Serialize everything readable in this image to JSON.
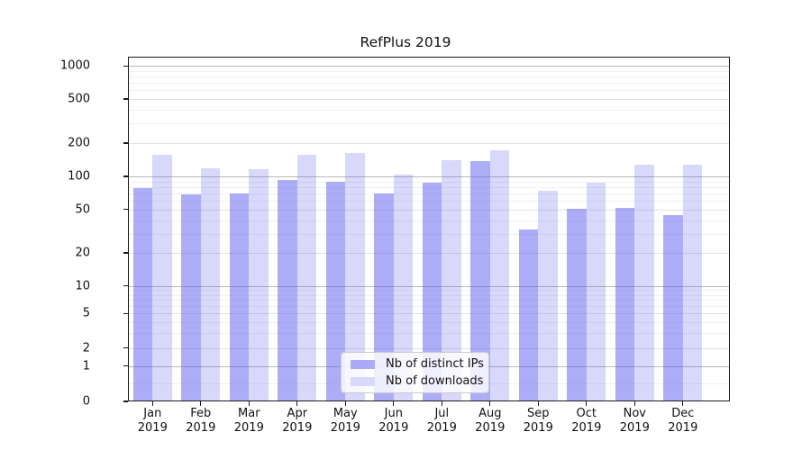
{
  "chart_data": {
    "type": "bar",
    "title": "RefPlus 2019",
    "categories": [
      "Jan 2019",
      "Feb 2019",
      "Mar 2019",
      "Apr 2019",
      "May 2019",
      "Jun 2019",
      "Jul 2019",
      "Aug 2019",
      "Sep 2019",
      "Oct 2019",
      "Nov 2019",
      "Dec 2019"
    ],
    "series": [
      {
        "key": "distinct-ips",
        "name": "Nb of distinct IPs",
        "css_color": "rgba(92,92,240,0.5)",
        "swatch_color": "#aaaaf8",
        "values": [
          79,
          68,
          70,
          92,
          90,
          70,
          87,
          137,
          33,
          51,
          52,
          44
        ]
      },
      {
        "key": "downloads",
        "name": "Nb of downloads",
        "css_color": "rgba(92,92,240,0.24)",
        "swatch_color": "#d8d8fa",
        "values": [
          158,
          119,
          116,
          158,
          163,
          103,
          139,
          173,
          74,
          87,
          128,
          128
        ]
      }
    ],
    "y_axis": {
      "ticks": [
        0,
        1,
        2,
        5,
        10,
        20,
        50,
        100,
        200,
        500,
        1000
      ],
      "scale": "log-like (1-2-5 pattern with 0 baseline)",
      "min": 0,
      "max": 1000
    },
    "legend": {
      "position": "inside bottom center"
    },
    "grid": true,
    "colors": {
      "major_grid": "#b9b9b9",
      "medium_grid": "#e2e2e2",
      "minor_grid": "#f0f0f0",
      "spine": "#1a1a1a",
      "text": "#111111"
    }
  }
}
